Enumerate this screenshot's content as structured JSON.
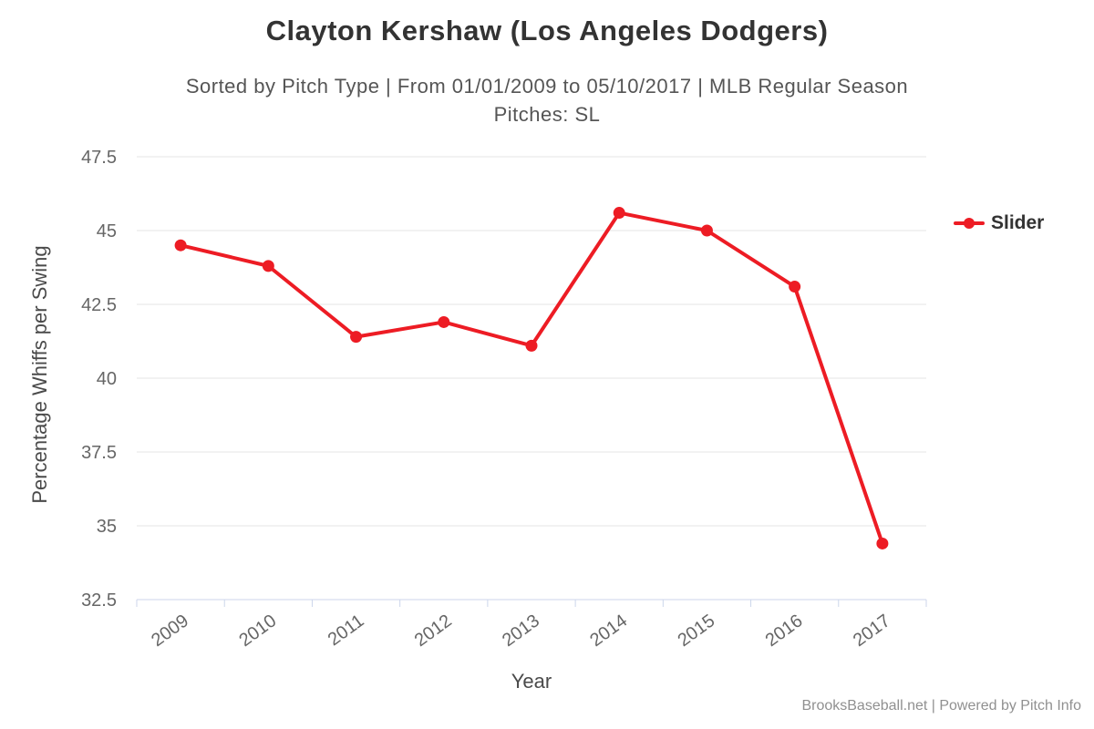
{
  "header": {
    "title": "Clayton Kershaw (Los Angeles Dodgers)",
    "subtitle_line1": "Sorted by Pitch Type | From 01/01/2009 to 05/10/2017 | MLB Regular Season",
    "subtitle_line2": "Pitches: SL"
  },
  "legend": {
    "items": [
      {
        "label": "Slider",
        "color": "#ed1c24"
      }
    ]
  },
  "footer": {
    "credit": "BrooksBaseball.net | Powered by Pitch Info"
  },
  "colors": {
    "series_red": "#ed1c24",
    "gridline": "#e6e6e6",
    "axis_line": "#ccd6eb",
    "tick_label": "#666666"
  },
  "chart_data": {
    "type": "line",
    "title": "Clayton Kershaw (Los Angeles Dodgers)",
    "subtitle": "Sorted by Pitch Type | From 01/01/2009 to 05/10/2017 | MLB Regular Season — Pitches: SL",
    "categories": [
      "2009",
      "2010",
      "2011",
      "2012",
      "2013",
      "2014",
      "2015",
      "2016",
      "2017"
    ],
    "series": [
      {
        "name": "Slider",
        "color": "#ed1c24",
        "values": [
          44.5,
          43.8,
          41.4,
          41.9,
          41.1,
          45.6,
          45.0,
          43.1,
          34.4
        ]
      }
    ],
    "xlabel": "Year",
    "ylabel": "Percentage Whiffs per Swing",
    "ylim": [
      32.5,
      47.5
    ],
    "yticks": [
      32.5,
      35,
      37.5,
      40,
      42.5,
      45,
      47.5
    ],
    "grid": true,
    "legend_position": "right"
  }
}
